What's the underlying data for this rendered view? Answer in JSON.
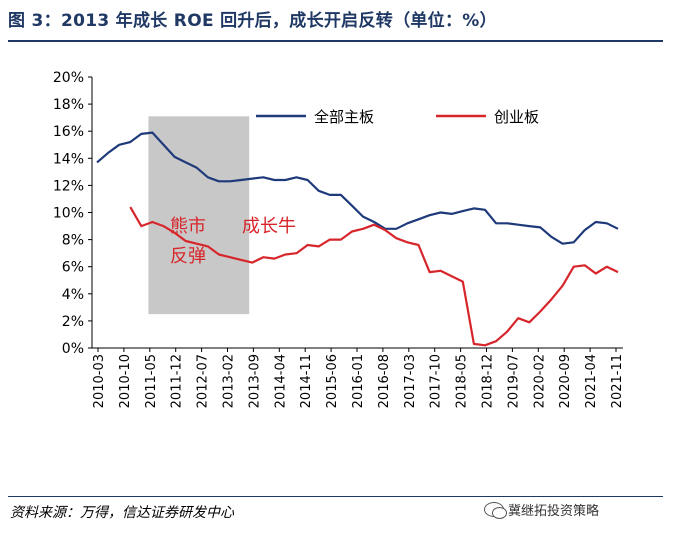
{
  "title": "图 3：2013 年成长 ROE 回升后，成长开启反转（单位：%）",
  "source": "资料来源：万得，信达证券研发中心",
  "watermark": "冀继拓投资策略",
  "watermark_icon": "wechat-icon",
  "chart_data": {
    "type": "line",
    "xlabel": "",
    "ylabel": "",
    "ylim": [
      0,
      20
    ],
    "yticks": [
      "0%",
      "2%",
      "4%",
      "6%",
      "8%",
      "10%",
      "12%",
      "14%",
      "16%",
      "18%",
      "20%"
    ],
    "xtick_labels": [
      "2010-03",
      "2010-10",
      "2011-05",
      "2011-12",
      "2012-07",
      "2013-02",
      "2013-09",
      "2014-04",
      "2014-11",
      "2015-06",
      "2016-01",
      "2016-08",
      "2017-03",
      "2017-10",
      "2018-05",
      "2018-12",
      "2019-07",
      "2020-02",
      "2020-09",
      "2021-04",
      "2021-11"
    ],
    "x_quarters": [
      "2010Q1",
      "2010Q2",
      "2010Q3",
      "2010Q4",
      "2011Q1",
      "2011Q2",
      "2011Q3",
      "2011Q4",
      "2012Q1",
      "2012Q2",
      "2012Q3",
      "2012Q4",
      "2013Q1",
      "2013Q2",
      "2013Q3",
      "2013Q4",
      "2014Q1",
      "2014Q2",
      "2014Q3",
      "2014Q4",
      "2015Q1",
      "2015Q2",
      "2015Q3",
      "2015Q4",
      "2016Q1",
      "2016Q2",
      "2016Q3",
      "2016Q4",
      "2017Q1",
      "2017Q2",
      "2017Q3",
      "2017Q4",
      "2018Q1",
      "2018Q2",
      "2018Q3",
      "2018Q4",
      "2019Q1",
      "2019Q2",
      "2019Q3",
      "2019Q4",
      "2020Q1",
      "2020Q2",
      "2020Q3",
      "2020Q4",
      "2021Q1",
      "2021Q2",
      "2021Q3",
      "2021Q4"
    ],
    "series": [
      {
        "name": "全部主板",
        "color": "#1f3a7a",
        "values": [
          13.7,
          14.4,
          15.0,
          15.2,
          15.8,
          15.9,
          15.0,
          14.1,
          13.7,
          13.3,
          12.6,
          12.3,
          12.3,
          12.4,
          12.5,
          12.6,
          12.4,
          12.4,
          12.6,
          12.4,
          11.6,
          11.3,
          11.3,
          10.5,
          9.7,
          9.3,
          8.8,
          8.8,
          9.2,
          9.5,
          9.8,
          10.0,
          9.9,
          10.1,
          10.3,
          10.2,
          9.2,
          9.2,
          9.1,
          9.0,
          8.9,
          8.2,
          7.7,
          7.8,
          8.7,
          9.3,
          9.2,
          8.8
        ]
      },
      {
        "name": "创业板",
        "color": "#d7262b",
        "values": [
          null,
          null,
          null,
          10.4,
          9.0,
          9.3,
          9.0,
          8.5,
          7.9,
          7.7,
          7.5,
          6.9,
          6.7,
          6.5,
          6.3,
          6.7,
          6.6,
          6.9,
          7.0,
          7.6,
          7.5,
          8.0,
          8.0,
          8.6,
          8.8,
          9.1,
          8.7,
          8.1,
          7.8,
          7.6,
          5.6,
          5.7,
          5.3,
          4.9,
          0.3,
          0.2,
          0.5,
          1.2,
          2.2,
          1.9,
          2.7,
          3.6,
          4.6,
          6.0,
          6.1,
          5.5,
          6.0,
          5.6
        ]
      }
    ],
    "shaded_region": {
      "from": "2011Q2",
      "to": "2013Q3",
      "color": "#c8c8c8"
    },
    "annotations": [
      {
        "text": "熊市",
        "color": "#d7262b"
      },
      {
        "text": "反弹",
        "color": "#d7262b"
      },
      {
        "text": "成长牛",
        "color": "#d7262b"
      }
    ],
    "legend_position": "top-right",
    "grid": false
  }
}
